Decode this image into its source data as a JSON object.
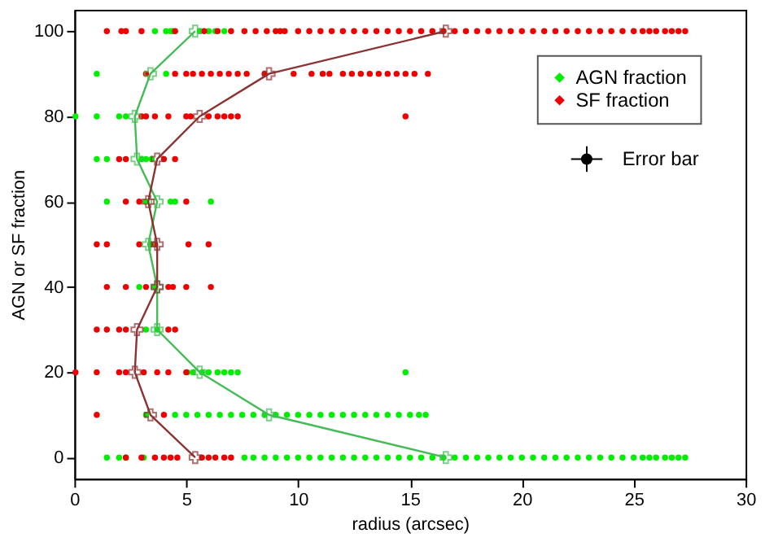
{
  "chart_data": {
    "type": "scatter",
    "xlabel": "radius (arcsec)",
    "ylabel": "AGN or SF fraction",
    "xlim": [
      0,
      30
    ],
    "ylim": [
      -5,
      105
    ],
    "xticks": [
      0,
      5,
      10,
      15,
      20,
      25,
      30
    ],
    "yticks": [
      0,
      20,
      40,
      60,
      80,
      100
    ],
    "grid": false,
    "legend": "top right",
    "series": [
      {
        "name": "AGN fraction",
        "marker": "circle",
        "color": "#00ee00",
        "x": [
          3.6,
          4.1,
          4.3,
          4.4,
          5.6,
          6.0,
          6.3,
          6.7,
          1.0,
          4.1,
          0.05,
          1.0,
          2.0,
          2.3,
          1.0,
          1.45,
          3.0,
          3.2,
          3.45,
          1.45,
          3.2,
          4.3,
          4.5,
          6.1,
          3.4,
          2.9,
          3.6,
          3.2,
          3.7,
          5.05,
          5.3,
          5.7,
          6.0,
          6.4,
          6.7,
          7.0,
          7.3,
          14.8,
          3.2,
          4.5,
          5.0,
          5.5,
          6.0,
          6.5,
          7.0,
          7.5,
          8.0,
          8.5,
          9.0,
          9.5,
          10.0,
          10.5,
          11.0,
          11.5,
          12.0,
          12.5,
          13.0,
          13.5,
          14.0,
          14.5,
          15.0,
          15.4,
          15.7,
          1.45,
          2.0,
          2.3,
          3.1,
          7.6,
          8.0,
          8.5,
          9.0,
          9.5,
          10.0,
          10.5,
          11.0,
          11.5,
          12.0,
          12.5,
          13.0,
          13.5,
          14.0,
          14.5,
          15.0,
          15.5,
          16.0,
          16.5,
          17.0,
          17.5,
          18.0,
          18.5,
          19.0,
          19.5,
          20.0,
          20.5,
          21.0,
          21.5,
          22.0,
          22.5,
          23.0,
          23.5,
          24.0,
          24.5,
          25.0,
          25.4,
          25.7,
          26.0,
          26.4,
          26.7,
          27.0,
          27.3
        ],
        "values": [
          100,
          100,
          100,
          100,
          100,
          100,
          100,
          100,
          90,
          90,
          80,
          80,
          80,
          80,
          70,
          70,
          70,
          70,
          70,
          60,
          60,
          60,
          60,
          60,
          50,
          40,
          40,
          30,
          30,
          20,
          20,
          20,
          20,
          20,
          20,
          20,
          20,
          20,
          10,
          10,
          10,
          10,
          10,
          10,
          10,
          10,
          10,
          10,
          10,
          10,
          10,
          10,
          10,
          10,
          10,
          10,
          10,
          10,
          10,
          10,
          10,
          10,
          10,
          0,
          0,
          0,
          0,
          0,
          0,
          0,
          0,
          0,
          0,
          0,
          0,
          0,
          0,
          0,
          0,
          0,
          0,
          0,
          0,
          0,
          0,
          0,
          0,
          0,
          0,
          0,
          0,
          0,
          0,
          0,
          0,
          0,
          0,
          0,
          0,
          0,
          0,
          0,
          0,
          0,
          0,
          0,
          0,
          0,
          0,
          0
        ]
      },
      {
        "name": "SF fraction",
        "marker": "circle",
        "color": "#ee0000",
        "x": [
          1.45,
          2.1,
          2.3,
          3.0,
          4.5,
          5.8,
          6.4,
          7.0,
          7.6,
          8.1,
          8.6,
          9.0,
          9.2,
          9.4,
          10.0,
          10.5,
          11.0,
          11.5,
          12.0,
          12.5,
          13.0,
          13.5,
          14.0,
          14.5,
          15.0,
          15.5,
          16.0,
          16.5,
          17.0,
          17.5,
          18.0,
          18.5,
          19.0,
          19.5,
          20.0,
          20.5,
          21.0,
          21.5,
          22.0,
          22.5,
          23.0,
          23.5,
          24.0,
          24.5,
          25.0,
          25.4,
          25.7,
          26.0,
          26.4,
          26.7,
          27.0,
          27.3,
          3.2,
          4.5,
          5.0,
          5.3,
          5.7,
          6.1,
          6.5,
          6.9,
          7.3,
          7.7,
          8.5,
          9.8,
          10.6,
          11.1,
          11.4,
          12.0,
          12.4,
          12.8,
          13.2,
          13.6,
          14.0,
          14.4,
          14.8,
          15.2,
          15.8,
          3.0,
          3.2,
          3.6,
          4.2,
          5.0,
          5.2,
          6.0,
          6.4,
          6.7,
          7.0,
          7.3,
          14.8,
          2.0,
          2.3,
          4.0,
          4.5,
          2.3,
          2.9,
          5.0,
          1.0,
          1.45,
          2.9,
          3.6,
          5.1,
          6.0,
          1.45,
          2.3,
          3.2,
          4.2,
          4.4,
          5.0,
          6.1,
          1.0,
          1.45,
          2.0,
          2.3,
          4.2,
          4.5,
          0.05,
          1.0,
          2.0,
          2.3,
          3.1,
          3.7,
          4.2,
          5.0,
          1.0,
          4.0,
          2.3,
          3.0,
          3.6,
          4.0,
          4.3,
          4.6,
          5.7,
          6.0,
          6.3,
          6.7,
          7.0
        ],
        "values": [
          100,
          100,
          100,
          100,
          100,
          100,
          100,
          100,
          100,
          100,
          100,
          100,
          100,
          100,
          100,
          100,
          100,
          100,
          100,
          100,
          100,
          100,
          100,
          100,
          100,
          100,
          100,
          100,
          100,
          100,
          100,
          100,
          100,
          100,
          100,
          100,
          100,
          100,
          100,
          100,
          100,
          100,
          100,
          100,
          100,
          100,
          100,
          100,
          100,
          100,
          100,
          100,
          90,
          90,
          90,
          90,
          90,
          90,
          90,
          90,
          90,
          90,
          90,
          90,
          90,
          90,
          90,
          90,
          90,
          90,
          90,
          90,
          90,
          90,
          90,
          90,
          90,
          80,
          80,
          80,
          80,
          80,
          80,
          80,
          80,
          80,
          80,
          80,
          80,
          70,
          70,
          70,
          70,
          60,
          60,
          60,
          50,
          50,
          50,
          50,
          50,
          50,
          40,
          40,
          40,
          40,
          40,
          40,
          40,
          30,
          30,
          30,
          30,
          30,
          30,
          20,
          20,
          20,
          20,
          20,
          20,
          20,
          20,
          10,
          10,
          0,
          0,
          0,
          0,
          0,
          0,
          0,
          0,
          0,
          0,
          0
        ]
      },
      {
        "type": "line",
        "marker": "cross",
        "color": "#44bb55",
        "x": [
          16.6,
          8.7,
          5.6,
          3.7,
          3.7,
          3.3,
          3.7,
          2.8,
          2.7,
          3.4,
          5.4
        ],
        "values": [
          0,
          10,
          20,
          30,
          40,
          50,
          60,
          70,
          80,
          90,
          100
        ]
      },
      {
        "type": "line",
        "marker": "cross",
        "color": "#8b3333",
        "x": [
          5.4,
          3.4,
          2.7,
          2.8,
          3.7,
          3.7,
          3.3,
          3.7,
          5.6,
          8.7,
          16.6
        ],
        "values": [
          0,
          10,
          20,
          30,
          40,
          50,
          60,
          70,
          80,
          90,
          100
        ]
      },
      {
        "name": "Error bar",
        "marker": "circle",
        "color": "#000000",
        "x": [
          22.9
        ],
        "values": [
          70
        ],
        "errors": [
          3
        ],
        "xerrors": [
          0.7
        ]
      }
    ]
  }
}
